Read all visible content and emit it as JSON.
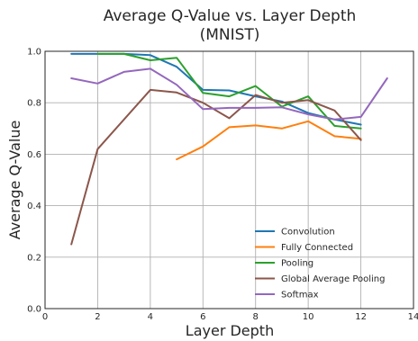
{
  "chart_data": {
    "type": "line",
    "title": "Average Q-Value vs. Layer Depth",
    "subtitle": "(MNIST)",
    "xlabel": "Layer Depth",
    "ylabel": "Average Q-Value",
    "xlim": [
      0,
      14
    ],
    "ylim": [
      0.0,
      1.0
    ],
    "xticks": [
      "0",
      "2",
      "4",
      "6",
      "8",
      "10",
      "12",
      "14"
    ],
    "yticks": [
      "0.0",
      "0.2",
      "0.4",
      "0.6",
      "0.8",
      "1.0"
    ],
    "grid": true,
    "legend_position": "lower-right",
    "series": [
      {
        "name": "Convolution",
        "color": "#1f77b4",
        "x": [
          1,
          2,
          3,
          4,
          5,
          6,
          7,
          8,
          9,
          10,
          11,
          12
        ],
        "y": [
          0.99,
          0.99,
          0.99,
          0.985,
          0.94,
          0.85,
          0.848,
          0.825,
          0.805,
          0.76,
          0.735,
          0.715
        ]
      },
      {
        "name": "Fully Connected",
        "color": "#ff7f0e",
        "x": [
          5,
          6,
          7,
          8,
          9,
          10,
          11,
          12
        ],
        "y": [
          0.58,
          0.63,
          0.705,
          0.712,
          0.7,
          0.728,
          0.67,
          0.66
        ]
      },
      {
        "name": "Pooling",
        "color": "#2ca02c",
        "x": [
          2,
          3,
          4,
          5,
          6,
          7,
          8,
          9,
          10,
          11,
          12
        ],
        "y": [
          0.99,
          0.99,
          0.965,
          0.975,
          0.838,
          0.825,
          0.865,
          0.785,
          0.825,
          0.71,
          0.7
        ]
      },
      {
        "name": "Global Average Pooling",
        "color": "#8c564b",
        "x": [
          1,
          2,
          4,
          5,
          6,
          7,
          8,
          9,
          10,
          11,
          12
        ],
        "y": [
          0.25,
          0.62,
          0.85,
          0.84,
          0.8,
          0.74,
          0.83,
          0.8,
          0.81,
          0.77,
          0.655
        ]
      },
      {
        "name": "Softmax",
        "color": "#9467bd",
        "x": [
          1,
          2,
          3,
          4,
          5,
          6,
          7,
          8,
          9,
          10,
          11,
          12,
          13
        ],
        "y": [
          0.895,
          0.875,
          0.92,
          0.932,
          0.87,
          0.775,
          0.78,
          0.78,
          0.782,
          0.755,
          0.735,
          0.745,
          0.895
        ]
      }
    ]
  }
}
